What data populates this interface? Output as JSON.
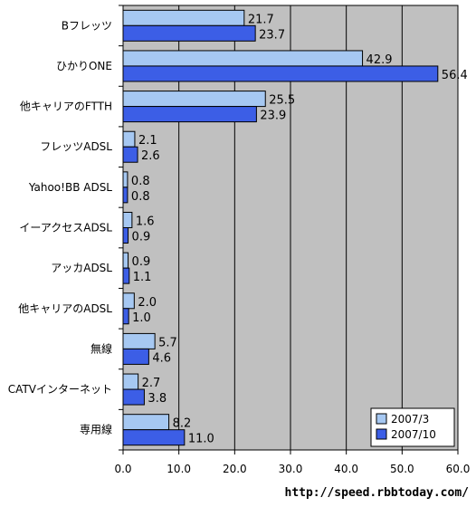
{
  "chart_data": {
    "type": "bar",
    "orientation": "horizontal",
    "categories": [
      "Bフレッツ",
      "ひかりONE",
      "他キャリアのFTTH",
      "フレッツADSL",
      "Yahoo!BB ADSL",
      "イーアクセスADSL",
      "アッカADSL",
      "他キャリアのADSL",
      "無線",
      "CATVインターネット",
      "専用線"
    ],
    "series": [
      {
        "name": "2007/3",
        "color": "#a6c8f2",
        "values": [
          21.7,
          42.9,
          25.5,
          2.1,
          0.8,
          1.6,
          0.9,
          2.0,
          5.7,
          2.7,
          8.2
        ],
        "labels": [
          "21.7",
          "42.9",
          "25.5",
          "2.1",
          "0.8",
          "1.6",
          "0.9",
          "2.0",
          "5.7",
          "2.7",
          "8.2"
        ]
      },
      {
        "name": "2007/10",
        "color": "#3c5ee6",
        "values": [
          23.7,
          56.4,
          23.9,
          2.6,
          0.8,
          0.9,
          1.1,
          1.0,
          4.6,
          3.8,
          11.0
        ],
        "labels": [
          "23.7",
          "56.4",
          "23.9",
          "2.6",
          "0.8",
          "0.9",
          "1.1",
          "1.0",
          "4.6",
          "3.8",
          "11.0"
        ]
      }
    ],
    "xlim": [
      0,
      60
    ],
    "xticks": [
      0,
      10,
      20,
      30,
      40,
      50,
      60
    ],
    "xtick_labels": [
      "0.0",
      "10.0",
      "20.0",
      "30.0",
      "40.0",
      "50.0",
      "60.0"
    ],
    "plot_background": "#c0c0c0",
    "grid": true,
    "legend_position": "bottom-right",
    "title": "",
    "xlabel": "",
    "ylabel": ""
  },
  "source": "http://speed.rbbtoday.com/"
}
